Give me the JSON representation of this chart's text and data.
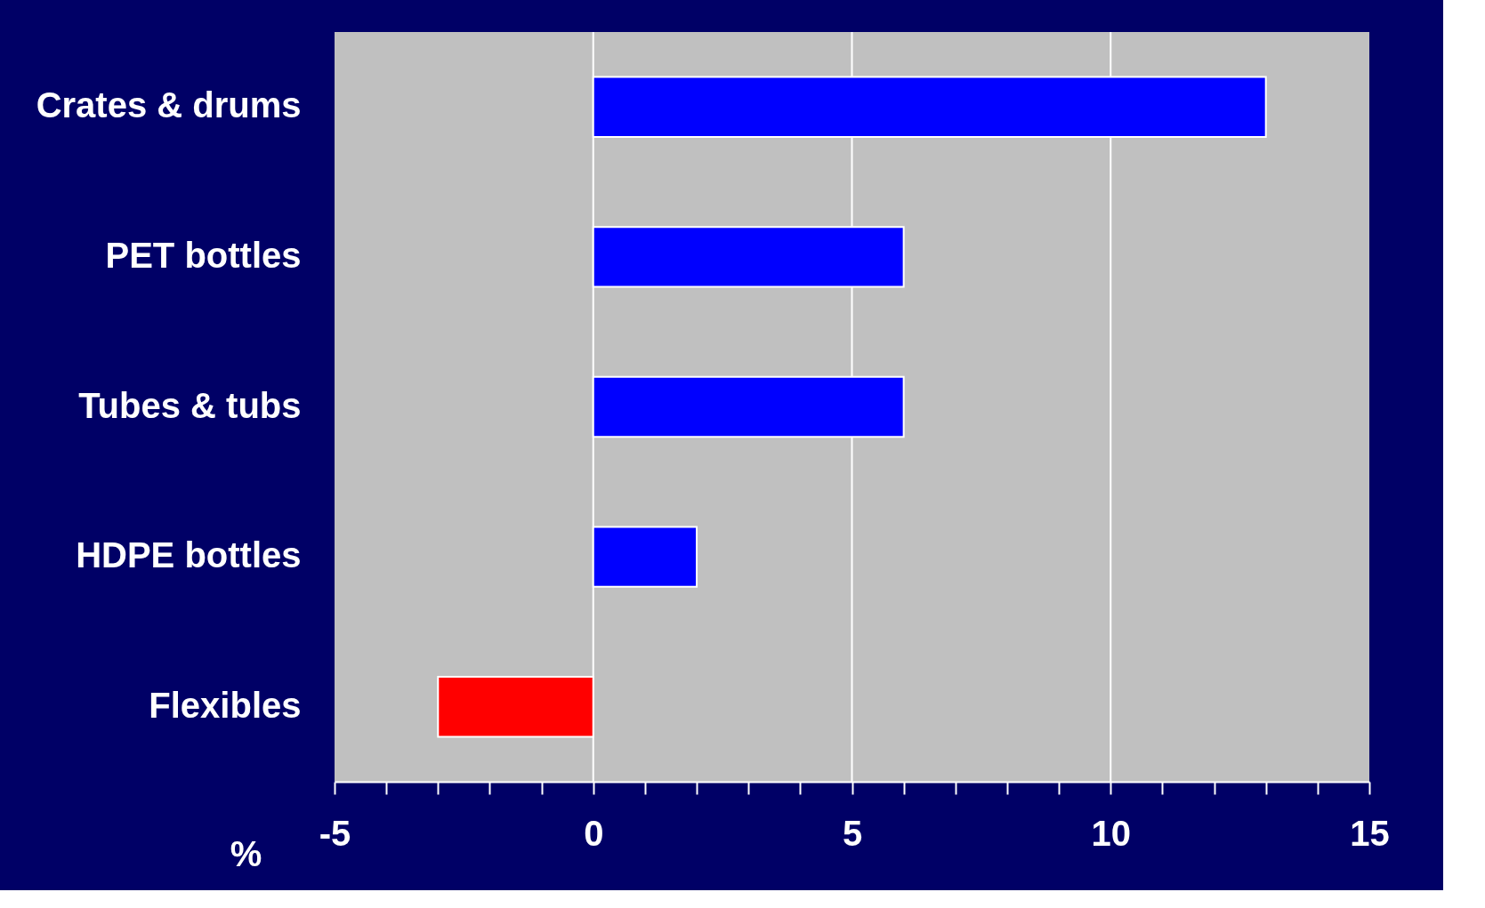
{
  "chart_data": {
    "type": "bar",
    "orientation": "horizontal",
    "xlabel": "%",
    "categories": [
      "Crates & drums",
      "PET bottles",
      "Tubes & tubs",
      "HDPE bottles",
      "Flexibles"
    ],
    "values": [
      13,
      6,
      6,
      2,
      -3
    ],
    "colors": [
      "#0000ff",
      "#0000ff",
      "#0000ff",
      "#0000ff",
      "#ff0000"
    ],
    "xlim": [
      -5,
      15
    ],
    "xticks": [
      -5,
      {
        "value": -4,
        "label": null
      },
      {
        "value": -3,
        "label": null
      },
      {
        "value": -2,
        "label": null
      },
      {
        "value": -1,
        "label": null
      },
      0,
      {
        "value": 1,
        "label": null
      },
      {
        "value": 2,
        "label": null
      },
      {
        "value": 3,
        "label": null
      },
      {
        "value": 4,
        "label": null
      },
      5,
      {
        "value": 6,
        "label": null
      },
      {
        "value": 7,
        "label": null
      },
      {
        "value": 8,
        "label": null
      },
      {
        "value": 9,
        "label": null
      },
      10,
      {
        "value": 11,
        "label": null
      },
      {
        "value": 12,
        "label": null
      },
      {
        "value": 13,
        "label": null
      },
      {
        "value": 14,
        "label": null
      },
      15
    ],
    "grid": "x"
  }
}
